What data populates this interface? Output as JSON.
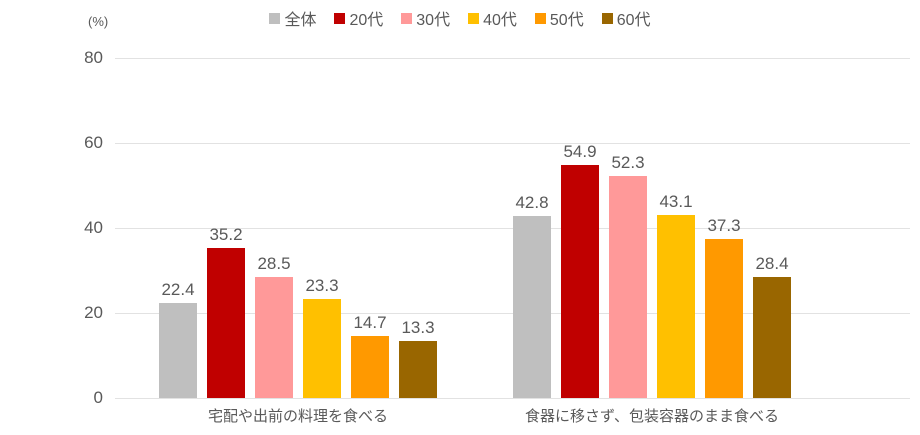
{
  "chart_data": {
    "type": "bar",
    "title": "",
    "unit_label": "(%)",
    "categories": [
      "宅配や出前の料理を食べる",
      "食器に移さず、包装容器のまま食べる"
    ],
    "series": [
      {
        "name": "全体",
        "color": "#bfbfbf",
        "values": [
          22.4,
          42.8
        ]
      },
      {
        "name": "20代",
        "color": "#c00000",
        "values": [
          35.2,
          54.9
        ]
      },
      {
        "name": "30代",
        "color": "#ff9999",
        "values": [
          28.5,
          52.3
        ]
      },
      {
        "name": "40代",
        "color": "#ffc000",
        "values": [
          23.3,
          43.1
        ]
      },
      {
        "name": "50代",
        "color": "#ff9900",
        "values": [
          14.7,
          37.3
        ]
      },
      {
        "name": "60代",
        "color": "#996600",
        "values": [
          13.3,
          28.4
        ]
      }
    ],
    "ylim": [
      0,
      80
    ],
    "yticks": [
      0,
      20,
      40,
      60,
      80
    ],
    "grid": true,
    "legend_position": "top",
    "data_labels": true,
    "text_color": "#595959",
    "gridline_color": "#e2e2e2"
  }
}
